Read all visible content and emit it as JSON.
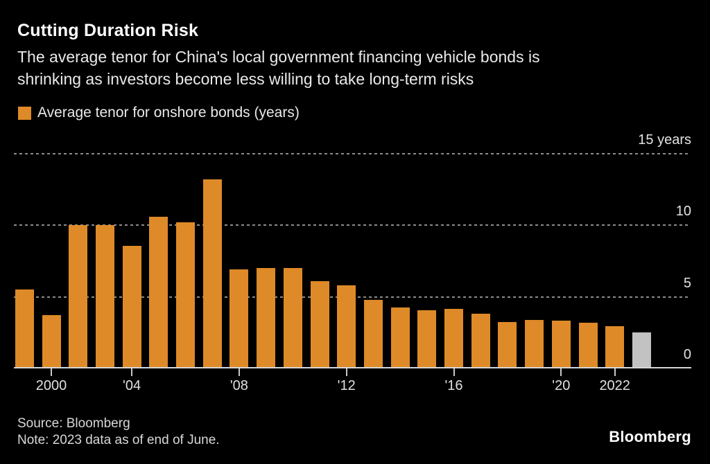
{
  "page": {
    "background_color": "#000000"
  },
  "header": {
    "title": "Cutting Duration Risk",
    "subtitle_line1": "The average tenor for China's local government financing vehicle bonds is",
    "subtitle_line2": "shrinking as investors become less willing to take long-term risks"
  },
  "legend": {
    "swatch_color": "#de8a28",
    "label": "Average tenor for onshore bonds (years)"
  },
  "chart_data": {
    "type": "bar",
    "title": "Cutting Duration Risk",
    "series_name": "Average tenor for onshore bonds (years)",
    "categories": [
      "1999",
      "2000",
      "2001",
      "2002",
      "2004",
      "2005",
      "2006",
      "2007",
      "2008",
      "2009",
      "2010",
      "2011",
      "2012",
      "2013",
      "2014",
      "2015",
      "2016",
      "2017",
      "2018",
      "2019",
      "2020",
      "2021",
      "2022",
      "2023"
    ],
    "values": [
      5.5,
      3.7,
      10.0,
      10.0,
      8.55,
      10.6,
      10.2,
      13.2,
      6.9,
      7.0,
      7.0,
      6.1,
      5.8,
      4.8,
      4.25,
      4.05,
      4.15,
      3.8,
      3.25,
      3.4,
      3.35,
      3.2,
      2.95,
      2.5
    ],
    "bar_color": "#de8a28",
    "highlight": {
      "index": 23,
      "color": "#c2c2c2"
    },
    "ylim": [
      0,
      15
    ],
    "grid": "horizontal-dotted",
    "legend_position": "top-left",
    "yticks": [
      {
        "value": 15,
        "label": "15 years"
      },
      {
        "value": 10,
        "label": "10"
      },
      {
        "value": 5,
        "label": "5"
      },
      {
        "value": 0,
        "label": "0"
      }
    ],
    "xticks": [
      {
        "index": 1,
        "label": "2000"
      },
      {
        "index": 4,
        "label": "'04"
      },
      {
        "index": 8,
        "label": "'08"
      },
      {
        "index": 12,
        "label": "'12"
      },
      {
        "index": 16,
        "label": "'16"
      },
      {
        "index": 20,
        "label": "'20"
      },
      {
        "index": 22,
        "label": "2022"
      }
    ]
  },
  "footer": {
    "source": "Source: Bloomberg",
    "note": "Note: 2023 data as of end of June.",
    "logo": "Bloomberg"
  }
}
